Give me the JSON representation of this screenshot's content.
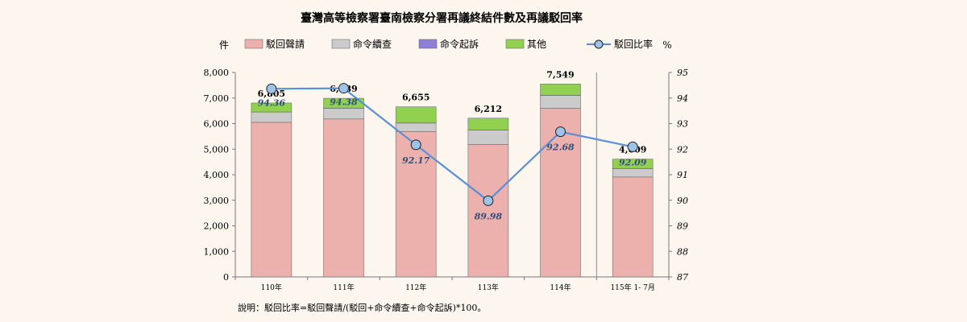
{
  "chart_data": {
    "type": "bar",
    "title": "臺灣高等檢察署臺南檢察分署再議終結件數及再議駁回率",
    "left_unit": "件",
    "right_unit": "%",
    "categories": [
      "110年",
      "111年",
      "112年",
      "113年",
      "114年",
      "115年 1- 7月"
    ],
    "stacked": true,
    "series": [
      {
        "name": "駁回聲請",
        "color": "#ecb0ad",
        "values": [
          6050,
          6180,
          5690,
          5180,
          6600,
          3910
        ]
      },
      {
        "name": "命令續查",
        "color": "#cbcbcb",
        "values": [
          400,
          420,
          330,
          570,
          500,
          330
        ]
      },
      {
        "name": "命令起訴",
        "color": "#8f7fd6",
        "values": [
          5,
          5,
          5,
          5,
          5,
          5
        ]
      },
      {
        "name": "其他",
        "color": "#92d050",
        "values": [
          350,
          384,
          630,
          457,
          444,
          364
        ]
      }
    ],
    "totals": [
      6805,
      6989,
      6655,
      6212,
      7549,
      4609
    ],
    "total_labels": [
      "6,805",
      "6,989",
      "6,655",
      "6,212",
      "7,549",
      "4,609"
    ],
    "line_series": {
      "name": "駁回比率",
      "color": "#5b8fd6",
      "marker_color": "#9dc3e6",
      "values": [
        94.36,
        94.38,
        92.17,
        89.98,
        92.68,
        92.09
      ],
      "labels": [
        "94.36",
        "94.38",
        "92.17",
        "89.98",
        "92.68",
        "92.09"
      ]
    },
    "y_left": {
      "min": 0,
      "max": 8000,
      "step": 1000,
      "tick_labels": [
        "0",
        "1,000",
        "2,000",
        "3,000",
        "4,000",
        "5,000",
        "6,000",
        "7,000",
        "8,000"
      ]
    },
    "y_right": {
      "min": 87,
      "max": 95,
      "step": 1,
      "tick_labels": [
        "87",
        "88",
        "89",
        "90",
        "91",
        "92",
        "93",
        "94",
        "95"
      ]
    },
    "legend_position": "top",
    "grid": false,
    "note": "說明：駁回比率=駁回聲請/(駁回+命令續查+命令起訴)*100。"
  }
}
